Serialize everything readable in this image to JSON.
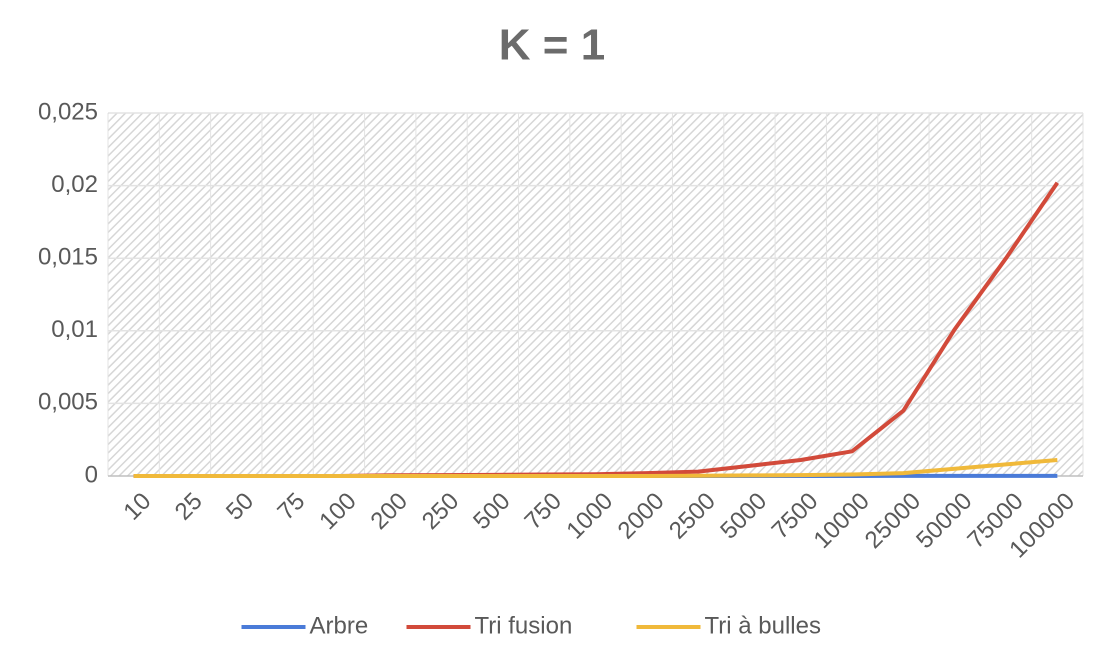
{
  "chart_data": {
    "type": "line",
    "title": "K = 1",
    "categories": [
      "10",
      "25",
      "50",
      "75",
      "100",
      "200",
      "250",
      "500",
      "750",
      "1000",
      "2000",
      "2500",
      "5000",
      "7500",
      "10000",
      "25000",
      "50000",
      "75000",
      "100000"
    ],
    "series": [
      {
        "name": "Arbre",
        "color": "#4a7bd8",
        "values": [
          0,
          0,
          0,
          0,
          0,
          0,
          0,
          0,
          0,
          0,
          0,
          0,
          0,
          0,
          0,
          1e-05,
          1e-05,
          1e-05,
          1e-05
        ]
      },
      {
        "name": "Tri fusion",
        "color": "#d24a3a",
        "values": [
          0,
          0,
          0,
          0,
          0,
          5e-05,
          6e-05,
          8e-05,
          0.0001,
          0.00012,
          0.0002,
          0.0003,
          0.0007,
          0.0011,
          0.0017,
          0.0045,
          0.0101,
          0.015,
          0.0202
        ]
      },
      {
        "name": "Tri à bulles",
        "color": "#f0b93a",
        "values": [
          0,
          0,
          0,
          0,
          0,
          0,
          0,
          0,
          0,
          0,
          0,
          2e-05,
          4e-05,
          6e-05,
          0.0001,
          0.0002,
          0.0005,
          0.0008,
          0.0011
        ]
      }
    ],
    "ylim": [
      0,
      0.025
    ],
    "yticks": [
      0,
      {
        "value": 0.005,
        "label": "0,005"
      },
      {
        "value": 0.01,
        "label": "0,01"
      },
      {
        "value": 0.015,
        "label": "0,015"
      },
      {
        "value": 0.02,
        "label": "0,02"
      },
      {
        "value": 0.025,
        "label": "0,025"
      }
    ],
    "grid": true,
    "legend": "bottom"
  }
}
